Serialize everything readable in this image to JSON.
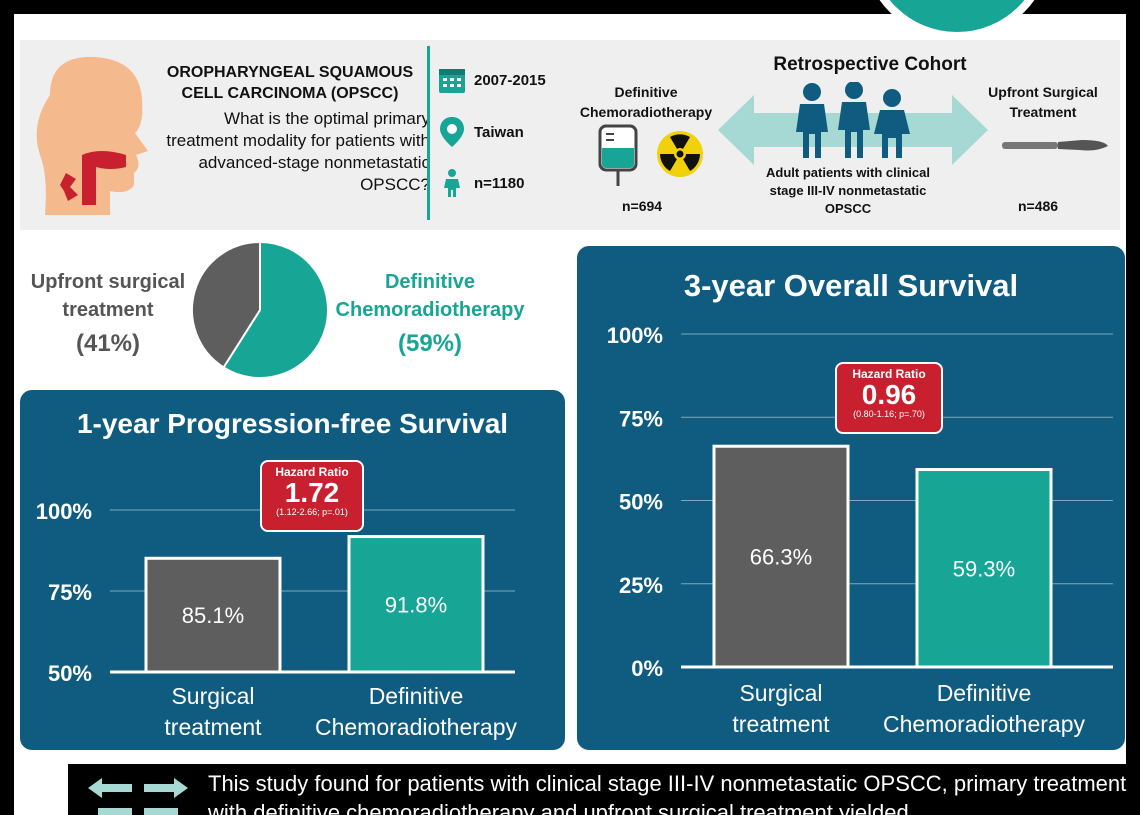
{
  "header": {
    "title": "OROPHARYNGEAL SQUAMOUS CELL CARCINOMA (OPSCC)",
    "question": "What is the optimal primary treatment modality for patients with advanced-stage nonmetastatic OPSCC?",
    "years": "2007-2015",
    "location": "Taiwan",
    "n_total": "n=1180",
    "cohort_title": "Retrospective Cohort",
    "arm_left": "Definitive Chemoradiotherapy",
    "arm_right": "Upfront Surgical Treatment",
    "cohort_desc": "Adult patients with clinical stage III-IV nonmetastatic OPSCC",
    "n_left": "n=694",
    "n_right": "n=486"
  },
  "pie": {
    "left_label": "Upfront surgical treatment",
    "left_pct": "(41%)",
    "right_label": "Definitive Chemoradiotherapy",
    "right_pct": "(59%)"
  },
  "chart_data": [
    {
      "type": "pie",
      "categories": [
        "Upfront surgical treatment",
        "Definitive Chemoradiotherapy"
      ],
      "values": [
        41,
        59
      ],
      "colors": [
        "#5e5e5e",
        "#17a596"
      ]
    },
    {
      "type": "bar",
      "title": "1-year Progression-free Survival",
      "categories": [
        "Surgical treatment",
        "Definitive Chemoradiotherapy"
      ],
      "values": [
        85.1,
        91.8
      ],
      "value_labels": [
        "85.1%",
        "91.8%"
      ],
      "yticks": [
        "100%",
        "75%",
        "50%"
      ],
      "ylim": [
        50,
        100
      ],
      "colors": [
        "#5e5e5e",
        "#17a596"
      ],
      "hazard_ratio": {
        "label": "Hazard Ratio",
        "value": "1.72",
        "ci": "(1.12-2.66; p=.01)"
      }
    },
    {
      "type": "bar",
      "title": "3-year Overall Survival",
      "categories": [
        "Surgical treatment",
        "Definitive Chemoradiotherapy"
      ],
      "values": [
        66.3,
        59.3
      ],
      "value_labels": [
        "66.3%",
        "59.3%"
      ],
      "yticks": [
        "100%",
        "75%",
        "50%",
        "25%",
        "0%"
      ],
      "ylim": [
        0,
        100
      ],
      "colors": [
        "#5e5e5e",
        "#17a596"
      ],
      "hazard_ratio": {
        "label": "Hazard Ratio",
        "value": "0.96",
        "ci": "(0.80-1.16; p=.70)"
      }
    }
  ],
  "footer": {
    "text": "This study found for patients with clinical stage III-IV nonmetastatic OPSCC, primary treatment with definitive chemoradiotherapy and upfront surgical treatment yielded"
  },
  "colors": {
    "teal": "#17a596",
    "navy": "#0f5c80",
    "gray": "#5e5e5e",
    "red": "#c8202f"
  }
}
